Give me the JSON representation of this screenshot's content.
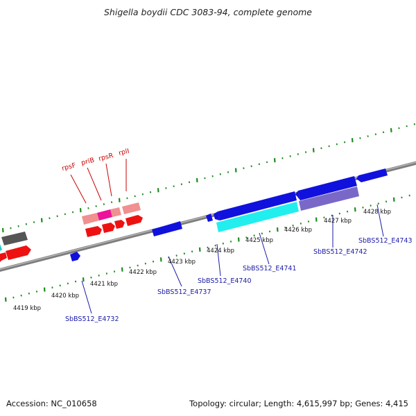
{
  "title": "Shigella boydii CDC 3083-94, complete genome",
  "footer": {
    "accession": "Accession: NC_010658",
    "summary": "Topology: circular; Length: 4,615,997 bp; Genes: 4,415"
  },
  "scale_labels": [
    "4419 kbp",
    "4420 kbp",
    "4421 kbp",
    "4422 kbp",
    "4423 kbp",
    "4424 kbp",
    "4425 kbp",
    "4426 kbp",
    "4427 kbp",
    "4428 kbp"
  ],
  "gene_labels_upper": [
    "rpsF",
    "priB",
    "rpsR",
    "rplI"
  ],
  "gene_labels_lower": [
    "SbBS512_E4732",
    "SbBS512_E4737",
    "SbBS512_E4740",
    "SbBS512_E4741",
    "SbBS512_E4742",
    "SbBS512_E4743"
  ],
  "colors": {
    "backbone": "#8a8a8a",
    "tick": "#1f8a1f",
    "red_gene": "#ee1111",
    "pink_gene": "#f09090",
    "magenta_gene": "#ee1199",
    "blue_gene": "#1111dd",
    "cyan_gene": "#22eeee",
    "purple_gene": "#7a68c8",
    "gray_gene": "#555555"
  }
}
